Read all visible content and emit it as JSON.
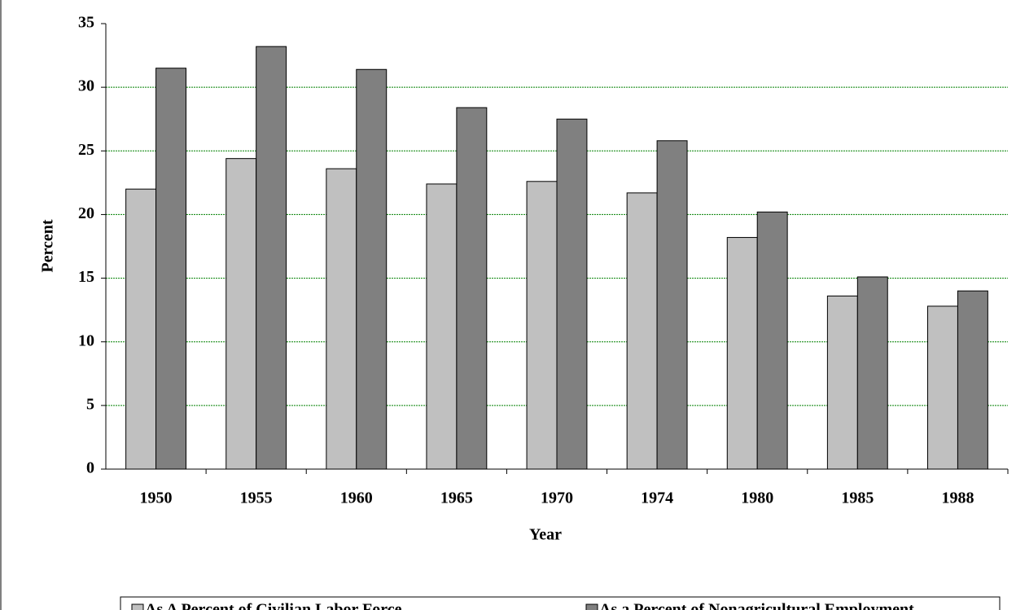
{
  "chart_data": {
    "type": "bar",
    "x_label": "Year",
    "y_label": "Percent",
    "categories": [
      "1950",
      "1955",
      "1960",
      "1965",
      "1970",
      "1974",
      "1980",
      "1985",
      "1988"
    ],
    "series": [
      {
        "name": "As A Percent of Civilian Labor Force",
        "color": "#c0c0c0",
        "values": [
          22.0,
          24.4,
          23.6,
          22.4,
          22.6,
          21.7,
          18.2,
          13.6,
          12.8
        ]
      },
      {
        "name": "As a Percent of Nonagricultural Employment",
        "color": "#808080",
        "values": [
          31.5,
          33.2,
          31.4,
          28.4,
          27.5,
          25.8,
          20.2,
          15.1,
          14.0
        ]
      }
    ],
    "ylim": [
      0,
      35
    ],
    "yticks": [
      0,
      5,
      10,
      15,
      20,
      25,
      30,
      35
    ],
    "grid": true,
    "grid_color": "#008000",
    "legend": "bottom"
  }
}
